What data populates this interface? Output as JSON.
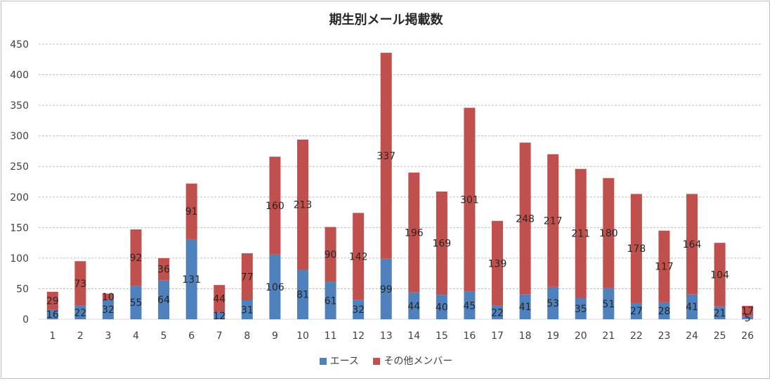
{
  "chart_data": {
    "type": "bar",
    "stacked": true,
    "title": "期生別メール掲載数",
    "xlabel": "",
    "ylabel": "",
    "ylim": [
      0,
      450
    ],
    "yticks": [
      0,
      50,
      100,
      150,
      200,
      250,
      300,
      350,
      400,
      450
    ],
    "grid": true,
    "legend_position": "bottom",
    "categories": [
      "1",
      "2",
      "3",
      "4",
      "5",
      "6",
      "7",
      "8",
      "9",
      "10",
      "11",
      "12",
      "13",
      "14",
      "15",
      "16",
      "17",
      "18",
      "19",
      "20",
      "21",
      "22",
      "23",
      "24",
      "25",
      "26"
    ],
    "series": [
      {
        "name": "エース",
        "color": "#4f81bd",
        "values": [
          16,
          22,
          32,
          55,
          64,
          131,
          12,
          31,
          106,
          81,
          61,
          32,
          99,
          44,
          40,
          45,
          22,
          41,
          53,
          35,
          51,
          27,
          28,
          41,
          21,
          5
        ]
      },
      {
        "name": "その他メンバー",
        "color": "#c0504d",
        "values": [
          29,
          73,
          10,
          92,
          36,
          91,
          44,
          77,
          160,
          213,
          90,
          142,
          337,
          196,
          169,
          301,
          139,
          248,
          217,
          211,
          180,
          178,
          117,
          164,
          104,
          17
        ]
      }
    ]
  }
}
